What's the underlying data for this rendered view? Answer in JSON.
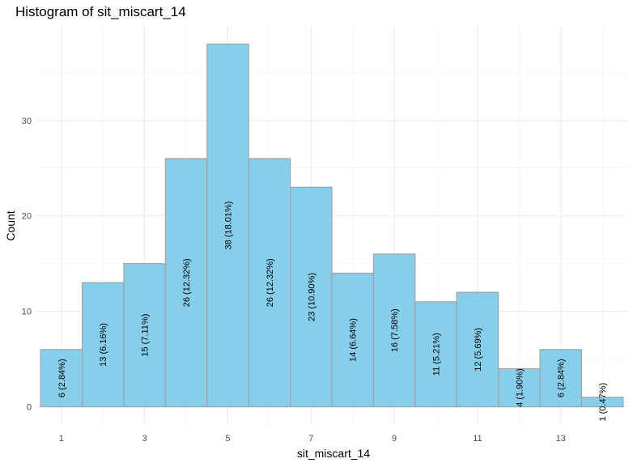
{
  "chart_data": {
    "type": "bar",
    "title": "Histogram of sit_miscart_14",
    "xlabel": "sit_miscart_14",
    "ylabel": "Count",
    "categories": [
      1,
      2,
      3,
      4,
      5,
      6,
      7,
      8,
      9,
      10,
      11,
      12,
      13,
      14
    ],
    "values": [
      6,
      13,
      15,
      26,
      38,
      26,
      23,
      14,
      16,
      11,
      12,
      4,
      6,
      1
    ],
    "labels": [
      "6 (2.84%)",
      "13 (6.16%)",
      "15 (7.11%)",
      "26 (12.32%)",
      "38 (18.01%)",
      "26 (12.32%)",
      "23 (10.90%)",
      "14 (6.64%)",
      "16 (7.58%)",
      "11 (5.21%)",
      "12 (5.69%)",
      "4 (1.90%)",
      "6 (2.84%)",
      "1 (0.47%)"
    ],
    "x_ticks": [
      1,
      3,
      5,
      7,
      9,
      11,
      13
    ],
    "y_ticks": [
      0,
      10,
      20,
      30
    ],
    "xlim": [
      0.4,
      14.6
    ],
    "ylim": [
      -1.9,
      39.9
    ],
    "bar_color": "#87ceeb",
    "bar_border_color": "#a3a3a3",
    "grid": true,
    "legend": "none"
  }
}
